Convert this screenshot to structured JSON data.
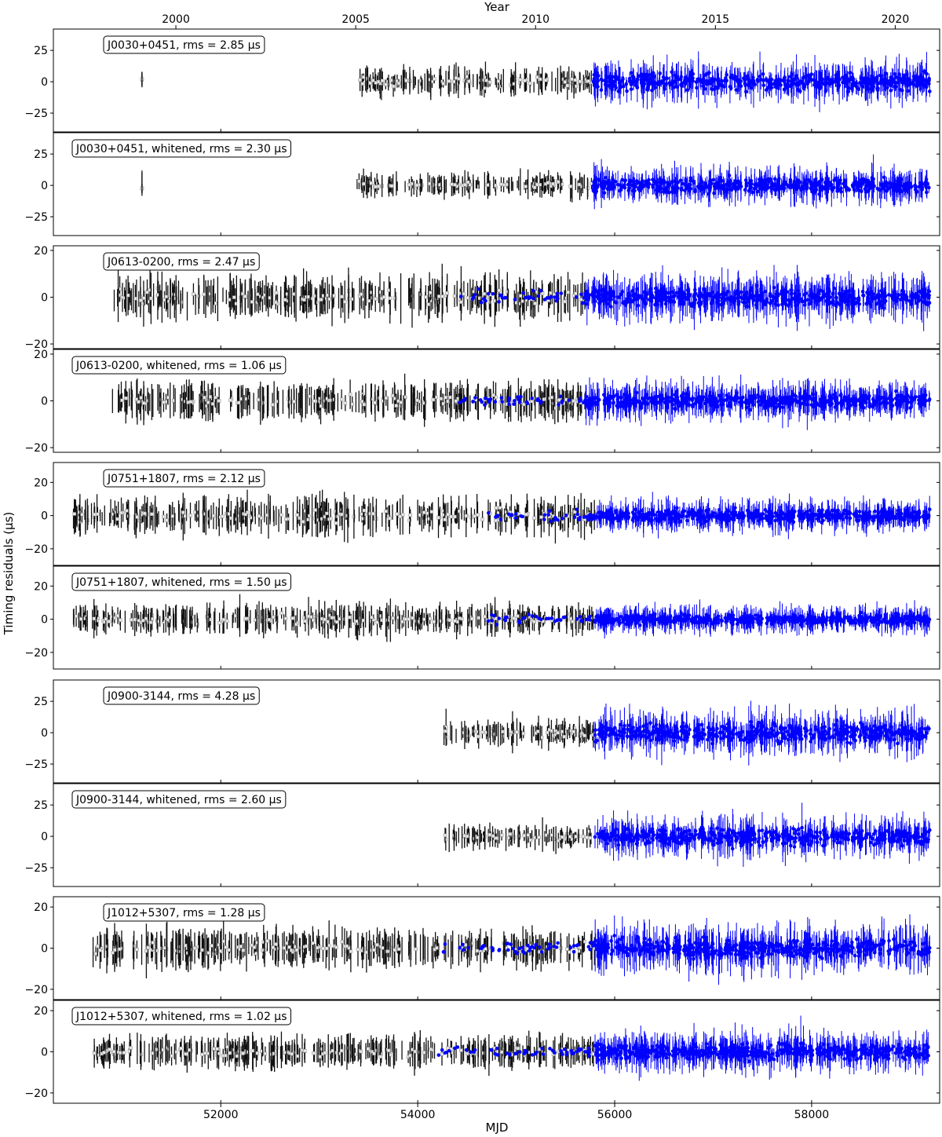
{
  "figure": {
    "top_axis_label": "Year",
    "bottom_axis_label": "MJD",
    "y_axis_label": "Timing residuals (μs)",
    "year_ticks": [
      2000,
      2005,
      2010,
      2015,
      2020
    ],
    "mjd_ticks": [
      52000,
      54000,
      56000,
      58000
    ],
    "mjd_range": [
      50300,
      59300
    ]
  },
  "colors": {
    "old_data": "#111111",
    "old_marker_fill": "#e6e6e6",
    "new_data": "#0000ff",
    "frame": "#000000"
  },
  "chart_data": [
    {
      "type": "scatter",
      "label": "J0030+0451, rms = 2.85 μs",
      "ylim": [
        -40,
        42
      ],
      "yticks": [
        -25,
        0,
        25
      ],
      "segments": [
        {
          "start": 51200,
          "end": 51200,
          "color": "old"
        },
        {
          "start": 53380,
          "end": 55780,
          "color": "old"
        },
        {
          "start": 55780,
          "end": 59200,
          "color": "new"
        }
      ],
      "scale": 5,
      "new_scale": 9
    },
    {
      "type": "scatter",
      "label": "J0030+0451, whitened, rms = 2.30 μs",
      "ylim": [
        -40,
        42
      ],
      "yticks": [
        -25,
        0,
        25
      ],
      "segments": [
        {
          "start": 51200,
          "end": 51200,
          "color": "old"
        },
        {
          "start": 53380,
          "end": 55780,
          "color": "old"
        },
        {
          "start": 55780,
          "end": 59200,
          "color": "new"
        }
      ],
      "scale": 4,
      "new_scale": 8
    },
    {
      "type": "scatter",
      "label": "J0613-0200, rms = 2.47 μs",
      "ylim": [
        -22,
        22
      ],
      "yticks": [
        -20,
        0,
        20
      ],
      "segments": [
        {
          "start": 50900,
          "end": 55700,
          "color": "old"
        },
        {
          "start": 54400,
          "end": 55700,
          "color": "newdots"
        },
        {
          "start": 55700,
          "end": 59200,
          "color": "new"
        }
      ],
      "scale": 4,
      "new_scale": 5
    },
    {
      "type": "scatter",
      "label": "J0613-0200, whitened, rms = 1.06 μs",
      "ylim": [
        -22,
        22
      ],
      "yticks": [
        -20,
        0,
        20
      ],
      "segments": [
        {
          "start": 50900,
          "end": 55700,
          "color": "old"
        },
        {
          "start": 54400,
          "end": 55700,
          "color": "newdots"
        },
        {
          "start": 55700,
          "end": 59200,
          "color": "new"
        }
      ],
      "scale": 3,
      "new_scale": 4
    },
    {
      "type": "scatter",
      "label": "J0751+1807, rms = 2.12 μs",
      "ylim": [
        -30,
        32
      ],
      "yticks": [
        -20,
        0,
        20
      ],
      "segments": [
        {
          "start": 50500,
          "end": 55800,
          "color": "old"
        },
        {
          "start": 54700,
          "end": 55800,
          "color": "newdots"
        },
        {
          "start": 55800,
          "end": 59200,
          "color": "new"
        }
      ],
      "scale": 5,
      "new_scale": 5
    },
    {
      "type": "scatter",
      "label": "J0751+1807, whitened, rms = 1.50 μs",
      "ylim": [
        -30,
        32
      ],
      "yticks": [
        -20,
        0,
        20
      ],
      "segments": [
        {
          "start": 50500,
          "end": 55800,
          "color": "old"
        },
        {
          "start": 54700,
          "end": 55800,
          "color": "newdots"
        },
        {
          "start": 55800,
          "end": 59200,
          "color": "new"
        }
      ],
      "scale": 4,
      "new_scale": 4
    },
    {
      "type": "scatter",
      "label": "J0900-3144, rms = 4.28 μs",
      "ylim": [
        -40,
        42
      ],
      "yticks": [
        -25,
        0,
        25
      ],
      "segments": [
        {
          "start": 54250,
          "end": 55800,
          "color": "old"
        },
        {
          "start": 55800,
          "end": 59200,
          "color": "new"
        }
      ],
      "scale": 5,
      "new_scale": 10
    },
    {
      "type": "scatter",
      "label": "J0900-3144, whitened, rms = 2.60 μs",
      "ylim": [
        -40,
        42
      ],
      "yticks": [
        -25,
        0,
        25
      ],
      "segments": [
        {
          "start": 54250,
          "end": 55800,
          "color": "old"
        },
        {
          "start": 55800,
          "end": 59200,
          "color": "new"
        }
      ],
      "scale": 4,
      "new_scale": 9
    },
    {
      "type": "scatter",
      "label": "J1012+5307, rms = 1.28 μs",
      "ylim": [
        -25,
        25
      ],
      "yticks": [
        -20,
        0,
        20
      ],
      "segments": [
        {
          "start": 50700,
          "end": 55800,
          "color": "old"
        },
        {
          "start": 54200,
          "end": 55800,
          "color": "newdots"
        },
        {
          "start": 55800,
          "end": 59200,
          "color": "new"
        }
      ],
      "scale": 4,
      "new_scale": 6
    },
    {
      "type": "scatter",
      "label": "J1012+5307, whitened, rms = 1.02 μs",
      "ylim": [
        -25,
        25
      ],
      "yticks": [
        -20,
        0,
        20
      ],
      "segments": [
        {
          "start": 50700,
          "end": 55800,
          "color": "old"
        },
        {
          "start": 54200,
          "end": 55800,
          "color": "newdots"
        },
        {
          "start": 55800,
          "end": 59200,
          "color": "new"
        }
      ],
      "scale": 3,
      "new_scale": 5
    }
  ]
}
